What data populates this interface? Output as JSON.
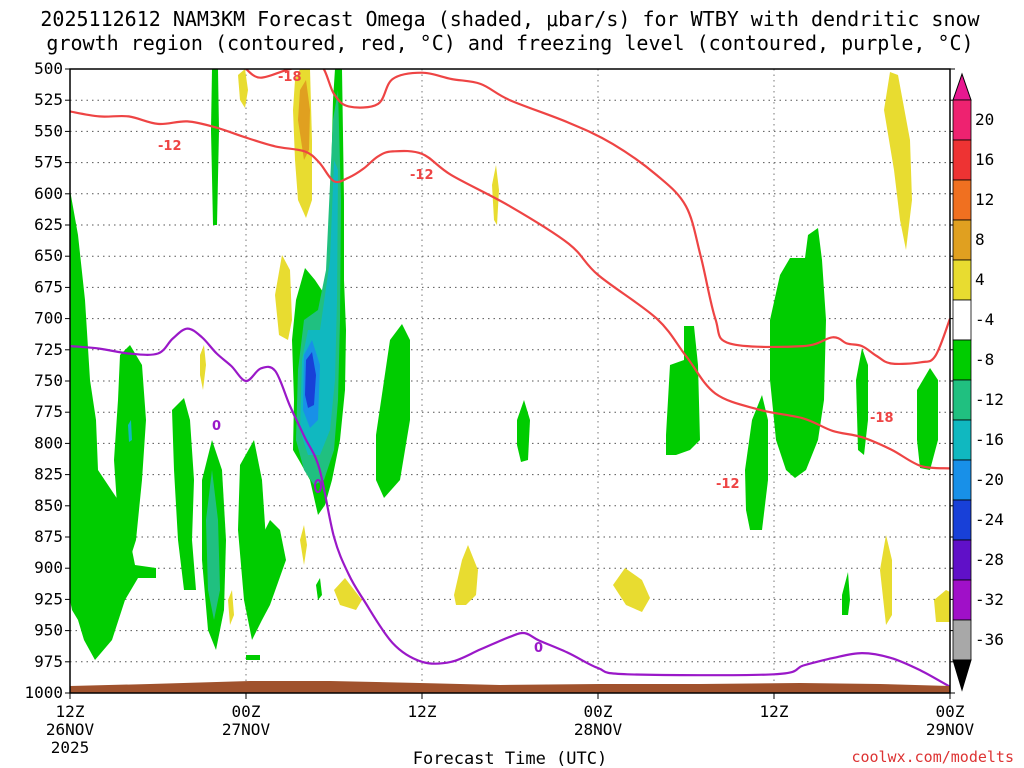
{
  "title_line1": "2025112612 NAM3KM Forecast Omega (shaded, μbar/s) for WTBY with dendritic snow",
  "title_line2": "growth region (contoured, red, °C) and freezing level (contoured, purple, °C)",
  "credit": "coolwx.com/modelts",
  "chart_data": {
    "type": "time-height cross section",
    "xlabel": "Forecast Time (UTC)",
    "ylabel": "",
    "x_range_hours": [
      0,
      60
    ],
    "y_range_hPa": [
      1000,
      500
    ],
    "y_ticks": [
      500,
      525,
      550,
      575,
      600,
      625,
      650,
      675,
      700,
      725,
      750,
      775,
      800,
      825,
      850,
      875,
      900,
      925,
      950,
      975,
      1000
    ],
    "x_ticks": [
      {
        "h": 0,
        "l1": "12Z",
        "l2": "26NOV",
        "l3": "2025"
      },
      {
        "h": 12,
        "l1": "00Z",
        "l2": "27NOV",
        "l3": ""
      },
      {
        "h": 24,
        "l1": "12Z",
        "l2": "",
        "l3": ""
      },
      {
        "h": 36,
        "l1": "00Z",
        "l2": "28NOV",
        "l3": ""
      },
      {
        "h": 48,
        "l1": "12Z",
        "l2": "",
        "l3": ""
      },
      {
        "h": 60,
        "l1": "00Z",
        "l2": "29NOV",
        "l3": ""
      }
    ],
    "grid": true,
    "colorbar": {
      "labels": [
        "20",
        "16",
        "12",
        "8",
        "4",
        "-4",
        "-8",
        "-12",
        "-16",
        "-20",
        "-24",
        "-28",
        "-32",
        "-36"
      ],
      "colors": [
        "#ee2270",
        "#ee3333",
        "#f07020",
        "#e0a020",
        "#e8dc30",
        "#ffffff",
        "#00cc00",
        "#20c080",
        "#10b8c0",
        "#1890e8",
        "#1840d8",
        "#6010c8",
        "#a010c8",
        "#a8a8a8"
      ],
      "extends": "both"
    },
    "contours": [
      {
        "name": "dgz_-12_upper",
        "label": "-12",
        "color": "#ee4444",
        "points": [
          [
            0,
            534
          ],
          [
            2,
            538
          ],
          [
            4,
            538
          ],
          [
            6,
            544
          ],
          [
            8,
            542
          ],
          [
            10,
            547
          ],
          [
            12,
            555
          ],
          [
            14,
            562
          ],
          [
            16,
            566
          ],
          [
            17,
            575
          ],
          [
            18,
            590
          ],
          [
            19,
            587
          ],
          [
            20,
            580
          ],
          [
            21,
            570
          ],
          [
            22,
            566
          ],
          [
            24,
            568
          ],
          [
            26,
            585
          ],
          [
            30,
            610
          ],
          [
            34,
            640
          ],
          [
            36,
            665
          ],
          [
            40,
            700
          ],
          [
            42,
            730
          ],
          [
            44,
            760
          ],
          [
            47,
            773
          ],
          [
            50,
            780
          ],
          [
            52,
            790
          ],
          [
            54,
            795
          ],
          [
            56,
            805
          ],
          [
            58,
            818
          ],
          [
            60,
            820
          ]
        ]
      },
      {
        "name": "dgz_-18",
        "label": "-18",
        "color": "#ee4444",
        "points": [
          [
            12,
            500
          ],
          [
            13,
            507
          ],
          [
            15,
            500
          ],
          [
            17,
            496
          ],
          [
            18,
            520
          ],
          [
            19,
            530
          ],
          [
            21,
            528
          ],
          [
            22,
            508
          ],
          [
            24,
            503
          ],
          [
            26,
            508
          ],
          [
            28,
            512
          ],
          [
            30,
            525
          ],
          [
            34,
            543
          ],
          [
            37,
            560
          ],
          [
            40,
            585
          ],
          [
            42,
            610
          ],
          [
            43,
            650
          ],
          [
            44,
            700
          ],
          [
            45,
            720
          ],
          [
            50,
            722
          ],
          [
            52,
            715
          ],
          [
            53,
            720
          ],
          [
            54,
            722
          ],
          [
            55,
            730
          ],
          [
            56,
            736
          ],
          [
            58,
            735
          ],
          [
            59,
            730
          ],
          [
            60,
            700
          ]
        ]
      },
      {
        "name": "freezing_0",
        "label": "0",
        "color": "#9a18c8",
        "points": [
          [
            0,
            722
          ],
          [
            2,
            724
          ],
          [
            4,
            728
          ],
          [
            6,
            728
          ],
          [
            7,
            716
          ],
          [
            8,
            708
          ],
          [
            9,
            715
          ],
          [
            10,
            728
          ],
          [
            11,
            738
          ],
          [
            12,
            750
          ],
          [
            13,
            740
          ],
          [
            14,
            742
          ],
          [
            15,
            770
          ],
          [
            16,
            795
          ],
          [
            17,
            820
          ],
          [
            18,
            875
          ],
          [
            19,
            905
          ],
          [
            20,
            925
          ],
          [
            22,
            960
          ],
          [
            24,
            975
          ],
          [
            26,
            975
          ],
          [
            28,
            965
          ],
          [
            30,
            955
          ],
          [
            31,
            952
          ],
          [
            32,
            958
          ],
          [
            34,
            968
          ],
          [
            36,
            980
          ],
          [
            38,
            985
          ],
          [
            48,
            985
          ],
          [
            50,
            978
          ],
          [
            52,
            972
          ],
          [
            54,
            968
          ],
          [
            56,
            972
          ],
          [
            58,
            982
          ],
          [
            60,
            995
          ]
        ]
      }
    ]
  }
}
